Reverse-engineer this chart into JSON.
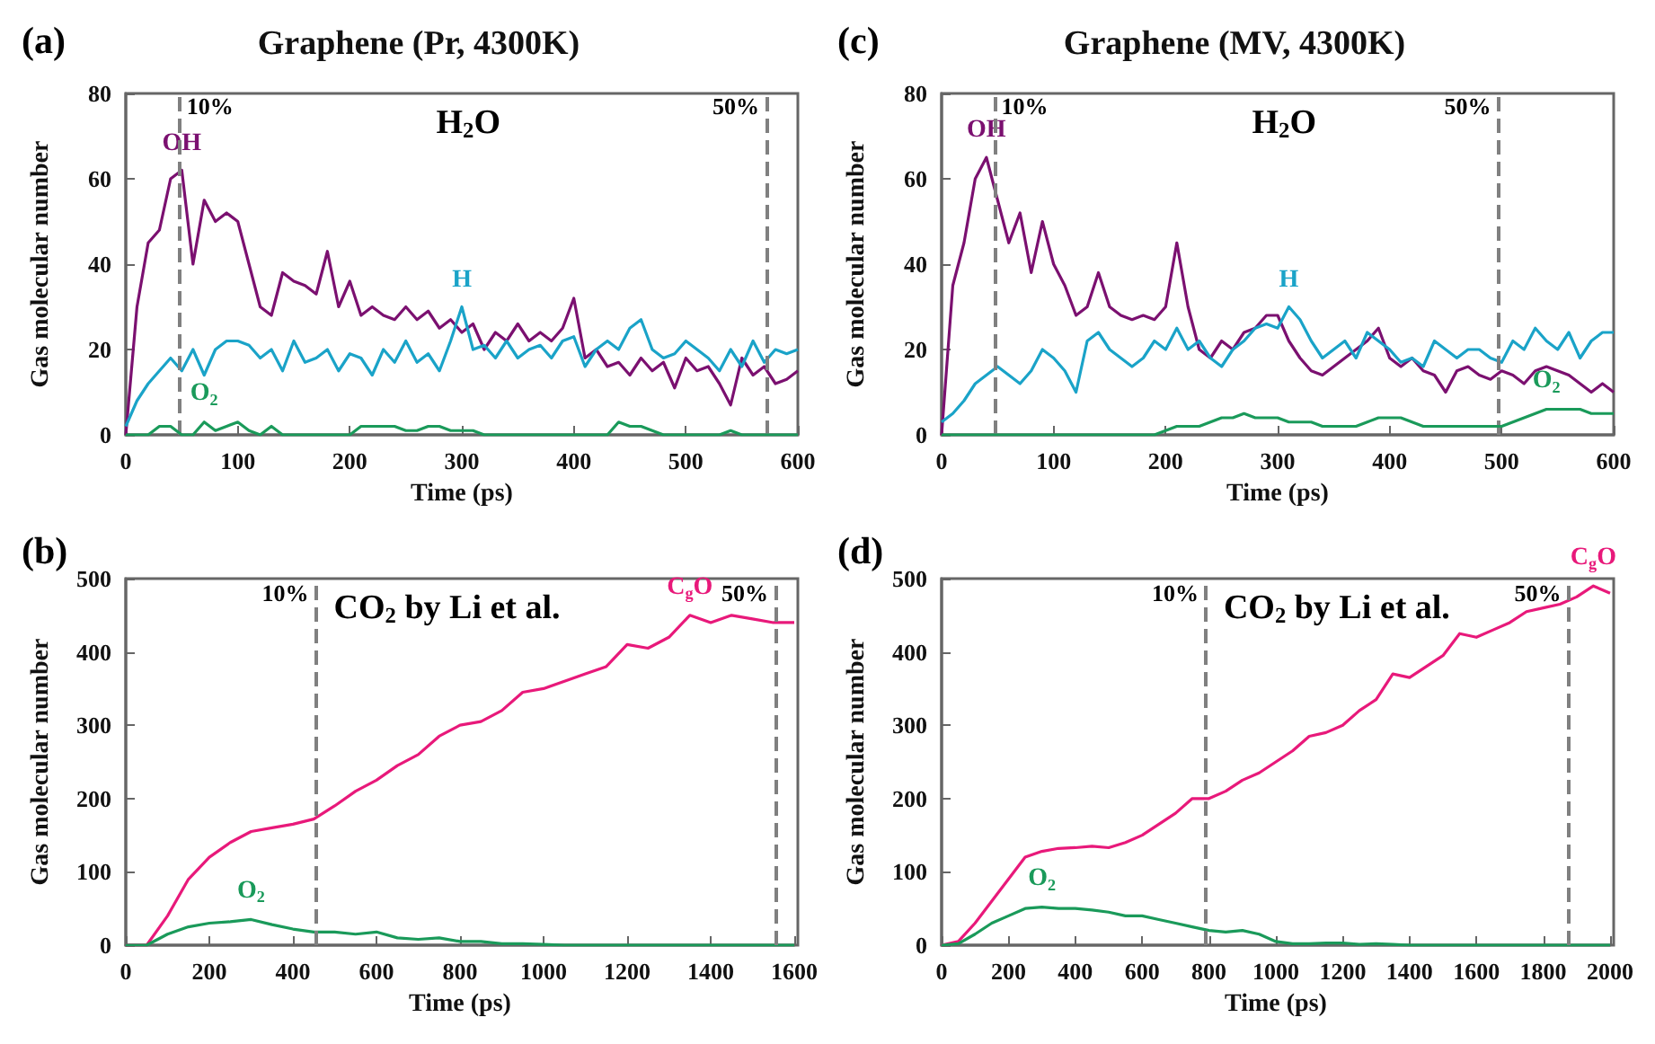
{
  "chart_data": [
    {
      "type": "line",
      "title": "Graphene (Pr, 4300K)",
      "xlabel": "Time (ps)",
      "ylabel": "Gas molecular number",
      "annotations": [
        "(a)",
        "H$_{2}$O",
        {
          "text": "10%",
          "x": 48,
          "y": 77
        },
        {
          "text": "50%",
          "x": 572,
          "y": 77
        }
      ],
      "x": [
        0,
        10,
        20,
        30,
        40,
        50,
        60,
        70,
        80,
        90,
        100,
        110,
        120,
        130,
        140,
        150,
        160,
        170,
        180,
        190,
        200,
        210,
        220,
        230,
        240,
        250,
        260,
        270,
        280,
        290,
        300,
        310,
        320,
        330,
        340,
        350,
        360,
        370,
        380,
        390,
        400,
        410,
        420,
        430,
        440,
        450,
        460,
        470,
        480,
        490,
        500,
        510,
        520,
        530,
        540,
        550,
        560,
        570,
        580,
        590,
        600
      ],
      "series": [
        {
          "name": "OH",
          "color": "#7b1070",
          "values": [
            0,
            30,
            45,
            48,
            60,
            62,
            40,
            55,
            50,
            52,
            50,
            40,
            30,
            28,
            38,
            36,
            35,
            33,
            43,
            30,
            36,
            28,
            30,
            28,
            27,
            30,
            27,
            29,
            25,
            27,
            24,
            26,
            20,
            24,
            22,
            26,
            22,
            24,
            22,
            25,
            32,
            18,
            20,
            16,
            17,
            14,
            18,
            15,
            17,
            11,
            18,
            15,
            16,
            12,
            7,
            18,
            14,
            16,
            12,
            13,
            15
          ]
        },
        {
          "name": "H",
          "color": "#1aa3c8",
          "values": [
            2,
            8,
            12,
            15,
            18,
            15,
            20,
            14,
            20,
            22,
            22,
            21,
            18,
            20,
            15,
            22,
            17,
            18,
            20,
            15,
            19,
            18,
            14,
            20,
            17,
            22,
            17,
            19,
            15,
            22,
            30,
            20,
            21,
            18,
            22,
            18,
            20,
            21,
            18,
            22,
            23,
            16,
            20,
            22,
            20,
            25,
            27,
            20,
            18,
            19,
            22,
            20,
            18,
            15,
            20,
            16,
            22,
            17,
            20,
            19,
            20
          ]
        },
        {
          "name": "O$_{2}$",
          "color": "#1a9a5a",
          "values": [
            0,
            0,
            0,
            2,
            2,
            0,
            0,
            3,
            1,
            2,
            3,
            1,
            0,
            2,
            0,
            0,
            0,
            0,
            0,
            0,
            0,
            2,
            2,
            2,
            2,
            1,
            1,
            2,
            2,
            1,
            1,
            1,
            0,
            0,
            0,
            0,
            0,
            0,
            0,
            0,
            0,
            0,
            0,
            0,
            3,
            2,
            2,
            1,
            0,
            0,
            0,
            0,
            0,
            0,
            1,
            0,
            0,
            0,
            0,
            0,
            0
          ]
        }
      ],
      "xlim": [
        0,
        600
      ],
      "xticks": [
        0,
        100,
        200,
        300,
        400,
        500,
        600
      ],
      "ylim": [
        0,
        80
      ],
      "yticks": [
        0,
        20,
        40,
        60,
        80
      ],
      "ref_lines": [
        {
          "axis": "x",
          "value": 48,
          "color": "#808080",
          "line_style": "dashed"
        },
        {
          "axis": "x",
          "value": 572,
          "color": "#808080",
          "line_style": "dashed"
        }
      ],
      "grid": false,
      "line_style": "solid"
    },
    {
      "type": "line",
      "title": "Graphene (MV, 4300K)",
      "xlabel": "Time (ps)",
      "ylabel": "Gas molecular number",
      "annotations": [
        "(c)",
        "H$_{2}$O",
        {
          "text": "10%",
          "x": 47,
          "y": 77
        },
        {
          "text": "50%",
          "x": 497,
          "y": 77
        }
      ],
      "x": [
        0,
        10,
        20,
        30,
        40,
        50,
        60,
        70,
        80,
        90,
        100,
        110,
        120,
        130,
        140,
        150,
        160,
        170,
        180,
        190,
        200,
        210,
        220,
        230,
        240,
        250,
        260,
        270,
        280,
        290,
        300,
        310,
        320,
        330,
        340,
        350,
        360,
        370,
        380,
        390,
        400,
        410,
        420,
        430,
        440,
        450,
        460,
        470,
        480,
        490,
        500,
        510,
        520,
        530,
        540,
        550,
        560,
        570,
        580,
        590,
        600
      ],
      "series": [
        {
          "name": "OH",
          "color": "#7b1070",
          "values": [
            0,
            35,
            45,
            60,
            65,
            55,
            45,
            52,
            38,
            50,
            40,
            35,
            28,
            30,
            38,
            30,
            28,
            27,
            28,
            27,
            30,
            45,
            30,
            20,
            18,
            22,
            20,
            24,
            25,
            28,
            28,
            22,
            18,
            15,
            14,
            16,
            18,
            20,
            22,
            25,
            18,
            16,
            18,
            15,
            14,
            10,
            15,
            16,
            14,
            13,
            15,
            14,
            12,
            15,
            16,
            15,
            14,
            12,
            10,
            12,
            10
          ]
        },
        {
          "name": "H",
          "color": "#1aa3c8",
          "values": [
            3,
            5,
            8,
            12,
            14,
            16,
            14,
            12,
            15,
            20,
            18,
            15,
            10,
            22,
            24,
            20,
            18,
            16,
            18,
            22,
            20,
            25,
            20,
            22,
            18,
            16,
            20,
            22,
            25,
            26,
            25,
            30,
            27,
            22,
            18,
            20,
            22,
            18,
            24,
            22,
            20,
            17,
            18,
            16,
            22,
            20,
            18,
            20,
            20,
            18,
            17,
            22,
            20,
            25,
            22,
            20,
            24,
            18,
            22,
            24,
            24
          ]
        },
        {
          "name": "O$_{2}$",
          "color": "#1a9a5a",
          "values": [
            0,
            0,
            0,
            0,
            0,
            0,
            0,
            0,
            0,
            0,
            0,
            0,
            0,
            0,
            0,
            0,
            0,
            0,
            0,
            0,
            1,
            2,
            2,
            2,
            3,
            4,
            4,
            5,
            4,
            4,
            4,
            3,
            3,
            3,
            2,
            2,
            2,
            2,
            3,
            4,
            4,
            4,
            3,
            2,
            2,
            2,
            2,
            2,
            2,
            2,
            2,
            3,
            4,
            5,
            6,
            6,
            6,
            6,
            5,
            5,
            5
          ]
        }
      ],
      "xlim": [
        0,
        600
      ],
      "xticks": [
        0,
        100,
        200,
        300,
        400,
        500,
        600
      ],
      "ylim": [
        0,
        80
      ],
      "yticks": [
        0,
        20,
        40,
        60,
        80
      ],
      "ref_lines": [
        {
          "axis": "x",
          "value": 47,
          "color": "#808080",
          "line_style": "dashed"
        },
        {
          "axis": "x",
          "value": 497,
          "color": "#808080",
          "line_style": "dashed"
        }
      ],
      "grid": false,
      "line_style": "solid"
    },
    {
      "type": "line",
      "xlabel": "Time (ps)",
      "ylabel": "Gas molecular number",
      "annotations": [
        "(b)",
        "CO$_{2}$ by Li et al.",
        {
          "text": "10%",
          "x": 455,
          "y": 480
        },
        {
          "text": "50%",
          "x": 1555,
          "y": 480
        }
      ],
      "x": [
        0,
        50,
        100,
        150,
        200,
        250,
        300,
        350,
        400,
        450,
        500,
        550,
        600,
        650,
        700,
        750,
        800,
        850,
        900,
        950,
        1000,
        1050,
        1100,
        1150,
        1200,
        1250,
        1300,
        1350,
        1400,
        1450,
        1500,
        1550,
        1600
      ],
      "series": [
        {
          "name": "C$_{g}$O",
          "color": "#e8197a",
          "values": [
            0,
            0,
            40,
            90,
            120,
            140,
            155,
            160,
            165,
            172,
            190,
            210,
            225,
            245,
            260,
            285,
            300,
            305,
            320,
            345,
            350,
            360,
            370,
            380,
            410,
            405,
            420,
            450,
            440,
            450,
            445,
            440,
            440
          ]
        },
        {
          "name": "O$_{2}$",
          "color": "#1a9a5a",
          "values": [
            0,
            0,
            15,
            25,
            30,
            32,
            35,
            28,
            22,
            18,
            18,
            15,
            18,
            10,
            8,
            10,
            5,
            5,
            2,
            2,
            1,
            0,
            0,
            0,
            0,
            0,
            0,
            0,
            0,
            0,
            0,
            0,
            0
          ]
        }
      ],
      "xlim": [
        0,
        1600
      ],
      "xticks": [
        0,
        200,
        400,
        600,
        800,
        1000,
        1200,
        1400,
        1600
      ],
      "ylim": [
        0,
        500
      ],
      "yticks": [
        0,
        100,
        200,
        300,
        400,
        500
      ],
      "ref_lines": [
        {
          "axis": "x",
          "value": 455,
          "color": "#808080",
          "line_style": "dashed"
        },
        {
          "axis": "x",
          "value": 1555,
          "color": "#808080",
          "line_style": "dashed"
        }
      ],
      "grid": false,
      "line_style": "solid"
    },
    {
      "type": "line",
      "xlabel": "Time (ps)",
      "ylabel": "Gas molecular number",
      "annotations": [
        "(d)",
        "CO$_{2}$ by Li et al.",
        {
          "text": "10%",
          "x": 790,
          "y": 480
        },
        {
          "text": "50%",
          "x": 1875,
          "y": 480
        }
      ],
      "x": [
        0,
        50,
        100,
        150,
        200,
        250,
        300,
        350,
        400,
        450,
        500,
        550,
        600,
        650,
        700,
        750,
        800,
        850,
        900,
        950,
        1000,
        1050,
        1100,
        1150,
        1200,
        1250,
        1300,
        1350,
        1400,
        1450,
        1500,
        1550,
        1600,
        1650,
        1700,
        1750,
        1800,
        1850,
        1900,
        1950,
        2000
      ],
      "series": [
        {
          "name": "C$_{g}$O",
          "color": "#e8197a",
          "values": [
            0,
            5,
            30,
            60,
            90,
            120,
            128,
            132,
            133,
            135,
            133,
            140,
            150,
            165,
            180,
            200,
            200,
            210,
            225,
            235,
            250,
            265,
            285,
            290,
            300,
            320,
            335,
            370,
            365,
            380,
            395,
            425,
            420,
            430,
            440,
            455,
            460,
            465,
            475,
            490,
            480
          ]
        },
        {
          "name": "O$_{2}$",
          "color": "#1a9a5a",
          "values": [
            0,
            2,
            15,
            30,
            40,
            50,
            52,
            50,
            50,
            48,
            45,
            40,
            40,
            35,
            30,
            25,
            20,
            18,
            20,
            15,
            5,
            2,
            2,
            3,
            3,
            1,
            2,
            1,
            0,
            0,
            0,
            0,
            0,
            0,
            0,
            0,
            0,
            0,
            0,
            0,
            0
          ]
        }
      ],
      "xlim": [
        0,
        2000
      ],
      "xticks": [
        0,
        200,
        400,
        600,
        800,
        1000,
        1200,
        1400,
        1600,
        1800,
        2000
      ],
      "ylim": [
        0,
        500
      ],
      "yticks": [
        0,
        100,
        200,
        300,
        400,
        500
      ],
      "ref_lines": [
        {
          "axis": "x",
          "value": 790,
          "color": "#808080",
          "line_style": "dashed"
        },
        {
          "axis": "x",
          "value": 1875,
          "color": "#808080",
          "line_style": "dashed"
        }
      ],
      "grid": false,
      "line_style": "solid"
    }
  ]
}
